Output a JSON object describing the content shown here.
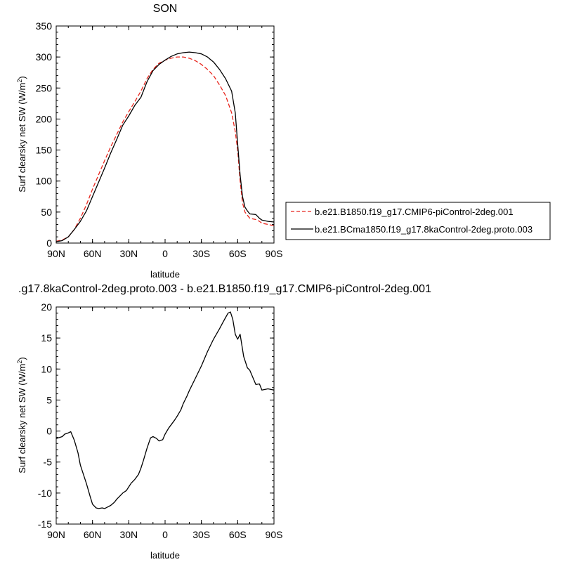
{
  "chart_data": [
    {
      "type": "line",
      "title": "SON",
      "xlabel": "latitude",
      "ylabel": "Surf clearsky net SW (W/m",
      "ylabel_sup": "2",
      "ylabel_end": ")",
      "xlim": [
        90,
        -90
      ],
      "ylim": [
        0,
        350
      ],
      "xticks": [
        90,
        60,
        30,
        0,
        -30,
        -60,
        -90
      ],
      "xtick_labels": [
        "90N",
        "60N",
        "30N",
        "0",
        "30S",
        "60S",
        "90S"
      ],
      "yticks": [
        0,
        50,
        100,
        150,
        200,
        250,
        300,
        350
      ],
      "ytick_labels": [
        "0",
        "50",
        "100",
        "150",
        "200",
        "250",
        "300",
        "350"
      ],
      "legend": "right",
      "series": [
        {
          "name": "b.e21.B1850.f19_g17.CMIP6-piControl-2deg.001",
          "color": "#e8261d",
          "dash": "dashed",
          "x": [
            90,
            85,
            80,
            75,
            70,
            65,
            60,
            55,
            50,
            45,
            40,
            35,
            30,
            25,
            20,
            15,
            10,
            5,
            0,
            -5,
            -10,
            -15,
            -20,
            -25,
            -30,
            -35,
            -40,
            -45,
            -50,
            -55,
            -58,
            -60,
            -62,
            -64,
            -66,
            -68,
            -70,
            -75,
            -78,
            -80,
            -85,
            -90
          ],
          "y": [
            3,
            5,
            10,
            22,
            40,
            62,
            87,
            110,
            133,
            155,
            175,
            195,
            212,
            228,
            245,
            265,
            280,
            290,
            295,
            298,
            300,
            300,
            298,
            294,
            288,
            280,
            270,
            255,
            238,
            210,
            180,
            150,
            100,
            65,
            50,
            45,
            40,
            38,
            35,
            32,
            30,
            28
          ]
        },
        {
          "name": "b.e21.BCma1850.f19_g17.8kaControl-2deg.proto.003",
          "color": "#000000",
          "dash": "solid",
          "x": [
            90,
            85,
            80,
            75,
            70,
            65,
            60,
            55,
            50,
            45,
            40,
            35,
            30,
            25,
            20,
            15,
            10,
            5,
            0,
            -5,
            -10,
            -15,
            -20,
            -25,
            -30,
            -35,
            -40,
            -45,
            -50,
            -55,
            -58,
            -60,
            -62,
            -64,
            -66,
            -68,
            -70,
            -75,
            -78,
            -80,
            -85,
            -90
          ],
          "y": [
            2,
            4,
            10,
            22,
            35,
            52,
            75,
            98,
            121,
            145,
            167,
            190,
            205,
            222,
            235,
            260,
            278,
            288,
            295,
            301,
            305,
            307,
            308,
            307,
            305,
            300,
            292,
            280,
            265,
            245,
            210,
            160,
            110,
            75,
            58,
            52,
            47,
            46,
            40,
            37,
            35,
            34
          ]
        }
      ]
    },
    {
      "type": "line",
      "title": ".g17.8kaControl-2deg.proto.003 - b.e21.B1850.f19_g17.CMIP6-piControl-2deg.001",
      "xlabel": "latitude",
      "ylabel": "Surf clearsky net SW (W/m",
      "ylabel_sup": "2",
      "ylabel_end": ")",
      "xlim": [
        90,
        -90
      ],
      "ylim": [
        -15,
        20
      ],
      "xticks": [
        90,
        60,
        30,
        0,
        -30,
        -60,
        -90
      ],
      "xtick_labels": [
        "90N",
        "60N",
        "30N",
        "0",
        "30S",
        "60S",
        "90S"
      ],
      "yticks": [
        -15,
        -10,
        -5,
        0,
        5,
        10,
        15,
        20
      ],
      "ytick_labels": [
        "-15",
        "-10",
        "-5",
        "0",
        "5",
        "10",
        "15",
        "20"
      ],
      "series": [
        {
          "color": "#000000",
          "dash": "solid",
          "x": [
            90,
            85,
            83,
            80,
            78,
            75,
            72,
            70,
            65,
            62,
            60,
            57,
            55,
            52,
            50,
            48,
            45,
            42,
            40,
            38,
            35,
            32,
            30,
            28,
            25,
            22,
            20,
            18,
            15,
            12,
            10,
            7,
            5,
            2,
            0,
            -3,
            -5,
            -8,
            -10,
            -13,
            -15,
            -18,
            -20,
            -25,
            -30,
            -35,
            -40,
            -45,
            -48,
            -50,
            -52,
            -54,
            -56,
            -58,
            -60,
            -62,
            -65,
            -68,
            -70,
            -75,
            -78,
            -80,
            -85,
            -90
          ],
          "y": [
            -1.2,
            -0.9,
            -0.5,
            -0.3,
            -0.1,
            -1.5,
            -3.5,
            -5.5,
            -8.5,
            -10.5,
            -11.8,
            -12.4,
            -12.5,
            -12.4,
            -12.5,
            -12.3,
            -12.0,
            -11.5,
            -11.0,
            -10.6,
            -10.0,
            -9.6,
            -9.0,
            -8.4,
            -7.8,
            -7.0,
            -6.0,
            -4.8,
            -2.8,
            -1.1,
            -0.9,
            -1.2,
            -1.6,
            -1.4,
            -0.5,
            0.5,
            1.0,
            1.8,
            2.4,
            3.4,
            4.4,
            5.6,
            6.5,
            8.5,
            10.5,
            12.8,
            14.8,
            16.5,
            17.6,
            18.3,
            19.0,
            19.2,
            18.0,
            15.6,
            14.8,
            15.6,
            12.0,
            10.2,
            9.8,
            7.5,
            7.6,
            6.6,
            6.8,
            6.6
          ]
        }
      ]
    }
  ]
}
